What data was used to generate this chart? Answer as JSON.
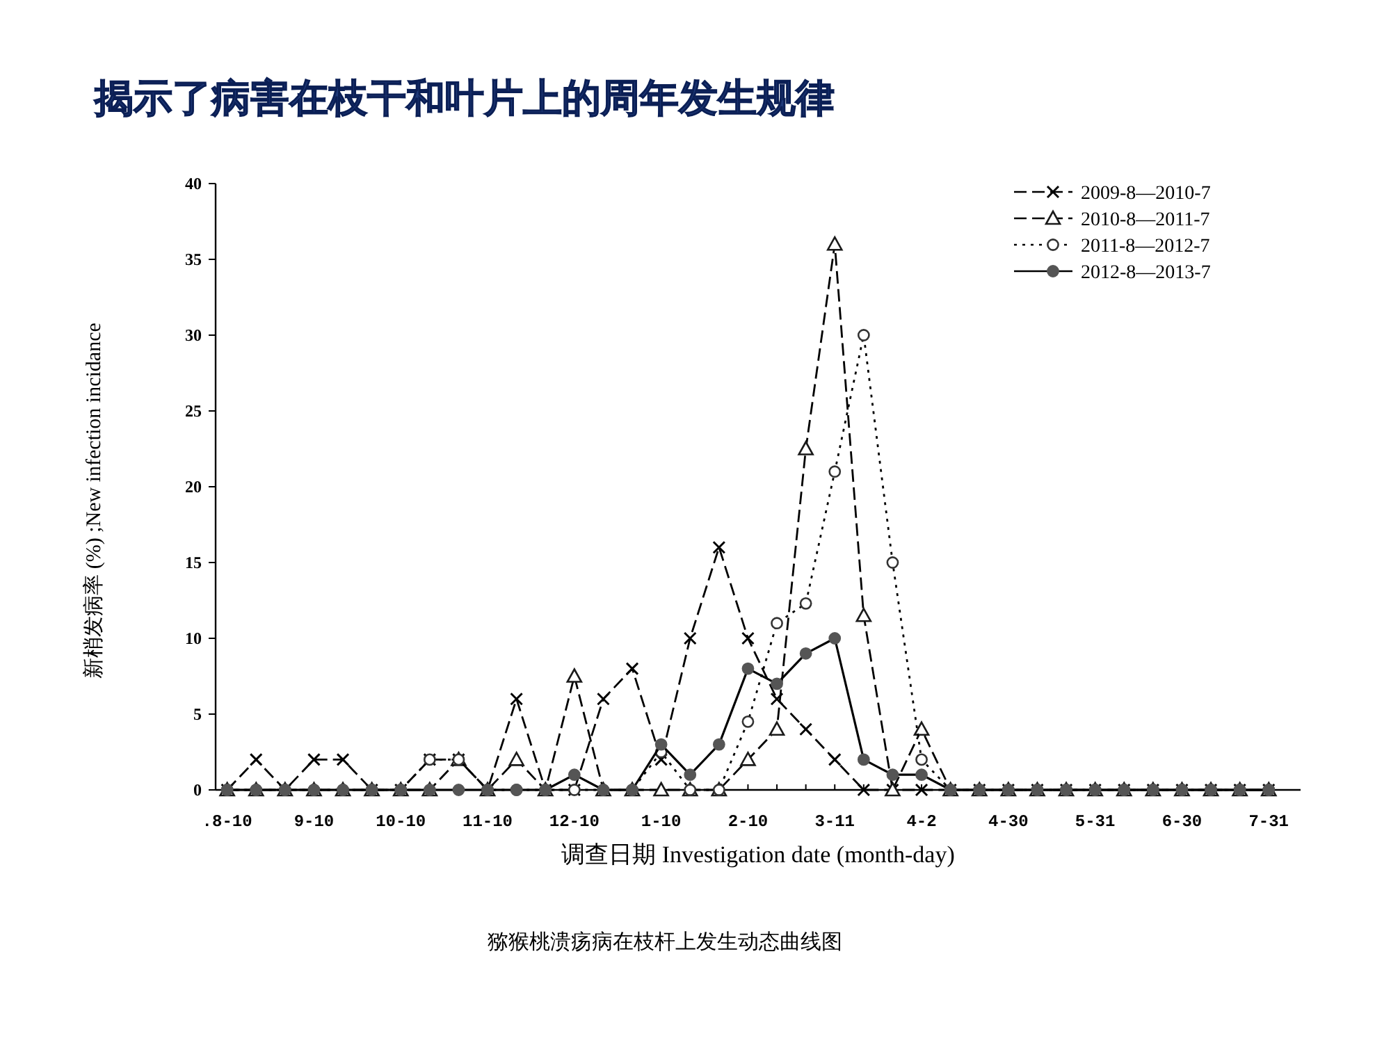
{
  "chart_data": {
    "type": "line",
    "title": "揭示了病害在枝干和叶片上的周年发生规律",
    "xlabel": "调查日期 Investigation date (month-day)",
    "ylabel": "新梢发病率 (%) ;New infection incidance",
    "annotations": [
      "猕猴桃溃疡病在枝杆上发生动态曲线图"
    ],
    "categories": [
      ".8-10",
      null,
      null,
      "9-10",
      null,
      null,
      "10-10",
      null,
      null,
      "11-10",
      null,
      null,
      "12-10",
      null,
      null,
      "1-10",
      null,
      null,
      "2-10",
      null,
      null,
      "3-11",
      null,
      null,
      "4-2",
      null,
      null,
      "4-30",
      null,
      null,
      "5-31",
      null,
      null,
      "6-30",
      null,
      null,
      "7-31"
    ],
    "series": [
      {
        "name": "2009-8—2010-7",
        "color": "#000000",
        "marker": "cross",
        "line_style": "dashed",
        "values": [
          0,
          2,
          0,
          2,
          2,
          0,
          0,
          2,
          2,
          0,
          6,
          0,
          0,
          6,
          8,
          2,
          10,
          16,
          10,
          6,
          4,
          2,
          0,
          0,
          0,
          0,
          0,
          0,
          0,
          0,
          0,
          0,
          0,
          0,
          0,
          0,
          0
        ]
      },
      {
        "name": "2010-8—2011-7",
        "color": "#1a1a1a",
        "marker": "triangle",
        "line_style": "dashed",
        "values": [
          0,
          0,
          0,
          0,
          0,
          0,
          0,
          0,
          2,
          0,
          2,
          0,
          7.5,
          0,
          0,
          0,
          0,
          0,
          2,
          4,
          22.5,
          36,
          11.5,
          0,
          4,
          0,
          0,
          0,
          0,
          0,
          0,
          0,
          0,
          0,
          0,
          0,
          0
        ]
      },
      {
        "name": "2011-8—2012-7",
        "color": "#333333",
        "marker": "circle",
        "line_style": "dotted",
        "values": [
          0,
          0,
          0,
          0,
          0,
          0,
          0,
          2,
          2,
          0,
          0,
          0,
          0,
          0,
          0,
          2.5,
          0,
          0,
          4.5,
          11,
          12.3,
          21,
          30,
          15,
          2,
          0,
          0,
          0,
          0,
          0,
          0,
          0,
          0,
          0,
          0,
          0,
          0
        ]
      },
      {
        "name": "2012-8—2013-7",
        "color": "#555555",
        "marker": "circle",
        "line_style": "solid",
        "values": [
          0,
          0,
          0,
          0,
          0,
          0,
          0,
          0,
          0,
          0,
          0,
          0,
          1,
          0,
          0,
          3,
          1,
          3,
          8,
          7,
          9,
          10,
          2,
          1,
          1,
          0,
          0,
          0,
          0,
          0,
          0,
          0,
          0,
          0,
          0,
          0,
          0
        ]
      }
    ],
    "ylim": [
      0,
      40
    ],
    "yticks": [
      0,
      5,
      10,
      15,
      20,
      25,
      30,
      35,
      40
    ],
    "legend": "top right"
  }
}
